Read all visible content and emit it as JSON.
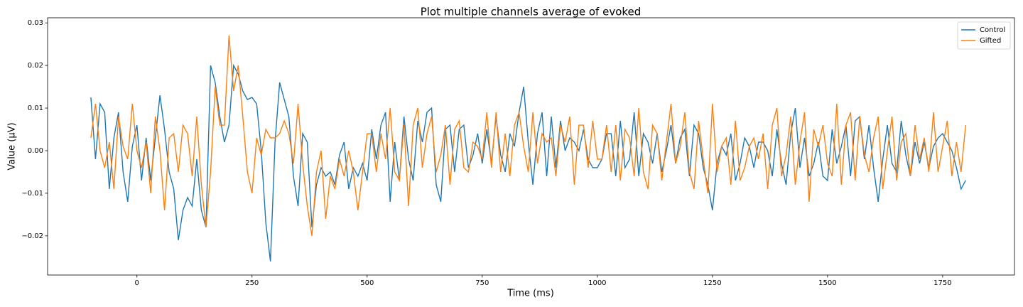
{
  "chart_data": {
    "type": "line",
    "title": "Plot multiple channels average of evoked",
    "xlabel": "Time (ms)",
    "ylabel": "Value (µV)",
    "xlim": [
      -194,
      1906
    ],
    "ylim": [
      -0.0292,
      0.0312
    ],
    "xticks": [
      0,
      250,
      500,
      750,
      1000,
      1250,
      1500,
      1750
    ],
    "yticks": [
      {
        "value": -0.02,
        "label": "−0.02"
      },
      {
        "value": -0.01,
        "label": "−0.01"
      },
      {
        "value": 0,
        "label": "0.00"
      },
      0.01,
      0.02,
      0.03
    ],
    "legend": "upper right",
    "x": [
      -100,
      -90,
      -80,
      -70,
      -60,
      -50,
      -40,
      -30,
      -20,
      -10,
      0,
      10,
      20,
      30,
      40,
      50,
      60,
      70,
      80,
      90,
      100,
      110,
      120,
      130,
      140,
      150,
      160,
      170,
      180,
      190,
      200,
      210,
      220,
      230,
      240,
      250,
      260,
      270,
      280,
      290,
      300,
      310,
      320,
      330,
      340,
      350,
      360,
      370,
      380,
      390,
      400,
      410,
      420,
      430,
      440,
      450,
      460,
      470,
      480,
      490,
      500,
      510,
      520,
      530,
      540,
      550,
      560,
      570,
      580,
      590,
      600,
      610,
      620,
      630,
      640,
      650,
      660,
      670,
      680,
      690,
      700,
      710,
      720,
      730,
      740,
      750,
      760,
      770,
      780,
      790,
      800,
      810,
      820,
      830,
      840,
      850,
      860,
      870,
      880,
      890,
      900,
      910,
      920,
      930,
      940,
      950,
      960,
      970,
      980,
      990,
      1000,
      1010,
      1020,
      1030,
      1040,
      1050,
      1060,
      1070,
      1080,
      1090,
      1100,
      1110,
      1120,
      1130,
      1140,
      1150,
      1160,
      1170,
      1180,
      1190,
      1200,
      1210,
      1220,
      1230,
      1240,
      1250,
      1260,
      1270,
      1280,
      1290,
      1300,
      1310,
      1320,
      1330,
      1340,
      1350,
      1360,
      1370,
      1380,
      1390,
      1400,
      1410,
      1420,
      1430,
      1440,
      1450,
      1460,
      1470,
      1480,
      1490,
      1500,
      1510,
      1520,
      1530,
      1540,
      1550,
      1560,
      1570,
      1580,
      1590,
      1600,
      1610,
      1620,
      1630,
      1640,
      1650,
      1660,
      1670,
      1680,
      1690,
      1700,
      1710,
      1720,
      1730,
      1740,
      1750,
      1760,
      1770,
      1780,
      1790,
      1800
    ],
    "series": [
      {
        "name": "Control",
        "color": "#1f77b4",
        "values": [
          0.0125,
          -0.002,
          0.011,
          0.009,
          -0.009,
          0.003,
          0.009,
          -0.005,
          -0.012,
          0.001,
          0.006,
          -0.007,
          0.003,
          -0.007,
          0.003,
          0.013,
          0.005,
          -0.005,
          -0.009,
          -0.021,
          -0.014,
          -0.011,
          -0.013,
          -0.002,
          -0.014,
          -0.018,
          0.02,
          0.016,
          0.008,
          0.002,
          0.006,
          0.02,
          0.018,
          0.014,
          0.012,
          0.0125,
          0.011,
          0.0,
          -0.017,
          -0.026,
          0.002,
          0.016,
          0.012,
          0.008,
          -0.006,
          -0.013,
          0.004,
          0.002,
          -0.018,
          -0.008,
          -0.004,
          -0.006,
          -0.005,
          -0.008,
          -0.001,
          0.002,
          -0.009,
          -0.004,
          -0.006,
          -0.003,
          -0.007,
          0.005,
          -0.002,
          0.006,
          0.009,
          -0.012,
          0.002,
          -0.007,
          0.008,
          -0.002,
          -0.007,
          0.007,
          0.002,
          0.009,
          0.01,
          -0.008,
          -0.012,
          0.005,
          0.006,
          -0.005,
          0.005,
          0.006,
          -0.004,
          -0.001,
          0.004,
          -0.003,
          0.005,
          -0.003,
          0.008,
          -0.001,
          -0.005,
          0.004,
          0.001,
          0.009,
          0.015,
          0.002,
          -0.008,
          0.004,
          0.009,
          -0.006,
          0.008,
          -0.004,
          0.007,
          0.0,
          0.003,
          0.002,
          0.0,
          0.005,
          -0.002,
          -0.004,
          -0.004,
          -0.002,
          0.004,
          0.004,
          -0.006,
          0.007,
          -0.004,
          -0.002,
          0.009,
          -0.006,
          0.004,
          0.002,
          -0.003,
          0.004,
          -0.005,
          0.0,
          0.006,
          -0.003,
          0.003,
          0.005,
          -0.006,
          0.006,
          0.004,
          -0.004,
          -0.008,
          -0.014,
          -0.003,
          0.001,
          -0.001,
          0.004,
          -0.007,
          -0.003,
          0.003,
          0.001,
          -0.004,
          0.002,
          0.002,
          0.0,
          -0.006,
          0.005,
          -0.003,
          -0.008,
          0.004,
          0.01,
          -0.004,
          0.003,
          -0.006,
          -0.003,
          0.002,
          -0.006,
          -0.007,
          0.005,
          -0.003,
          0.001,
          0.006,
          -0.006,
          0.007,
          0.008,
          -0.002,
          0.006,
          -0.004,
          -0.012,
          -0.002,
          0.006,
          -0.003,
          -0.005,
          0.007,
          -0.001,
          -0.006,
          0.002,
          -0.003,
          0.002,
          -0.004,
          0.001,
          0.003,
          0.004,
          0.002,
          0.0,
          -0.004,
          -0.009,
          -0.007
        ]
      },
      {
        "name": "Gifted",
        "color": "#ff7f0e",
        "values": [
          0.003,
          0.011,
          0.0,
          -0.004,
          0.002,
          -0.009,
          0.008,
          0.001,
          -0.002,
          0.011,
          0.0,
          -0.004,
          0.002,
          -0.01,
          0.008,
          0.0,
          -0.014,
          0.003,
          0.004,
          -0.005,
          0.006,
          0.004,
          -0.006,
          0.008,
          -0.008,
          -0.018,
          -0.005,
          0.015,
          0.006,
          0.006,
          0.027,
          0.014,
          0.02,
          0.008,
          -0.005,
          -0.01,
          0.003,
          -0.001,
          0.005,
          0.003,
          0.003,
          0.004,
          0.007,
          0.004,
          -0.003,
          0.011,
          -0.003,
          -0.013,
          -0.02,
          -0.005,
          0.0,
          -0.016,
          -0.006,
          -0.009,
          -0.002,
          -0.006,
          0.0,
          -0.005,
          -0.014,
          -0.005,
          0.004,
          0.004,
          -0.005,
          0.004,
          -0.002,
          0.01,
          -0.005,
          -0.007,
          0.006,
          -0.013,
          0.006,
          0.01,
          -0.004,
          0.004,
          0.008,
          -0.005,
          -0.001,
          0.006,
          -0.008,
          0.005,
          0.007,
          -0.004,
          -0.005,
          0.002,
          0.001,
          -0.002,
          0.009,
          -0.004,
          0.009,
          -0.005,
          0.004,
          -0.006,
          0.006,
          0.009,
          0.001,
          -0.005,
          0.009,
          -0.003,
          0.004,
          0.002,
          0.003,
          -0.006,
          0.006,
          0.002,
          0.008,
          -0.008,
          0.006,
          0.006,
          -0.004,
          0.007,
          -0.002,
          -0.002,
          0.006,
          -0.005,
          0.006,
          -0.007,
          0.005,
          0.003,
          -0.006,
          0.01,
          -0.005,
          -0.009,
          0.006,
          0.004,
          -0.007,
          0.002,
          0.011,
          -0.003,
          0.001,
          0.009,
          -0.005,
          -0.009,
          0.007,
          -0.002,
          -0.01,
          0.011,
          -0.005,
          0.001,
          0.003,
          -0.008,
          0.007,
          -0.007,
          -0.004,
          0.001,
          0.003,
          -0.002,
          0.004,
          -0.009,
          0.006,
          0.01,
          -0.006,
          -0.001,
          0.008,
          -0.008,
          0.002,
          0.009,
          -0.012,
          0.005,
          0.001,
          0.006,
          -0.003,
          -0.006,
          0.011,
          -0.008,
          0.006,
          0.009,
          -0.007,
          0.008,
          -0.001,
          -0.005,
          0.003,
          0.008,
          -0.009,
          0.0,
          0.008,
          -0.007,
          0.002,
          0.004,
          -0.006,
          0.006,
          -0.002,
          0.003,
          -0.005,
          0.009,
          -0.005,
          0.001,
          0.007,
          -0.006,
          0.002,
          -0.005,
          0.006
        ]
      }
    ]
  }
}
